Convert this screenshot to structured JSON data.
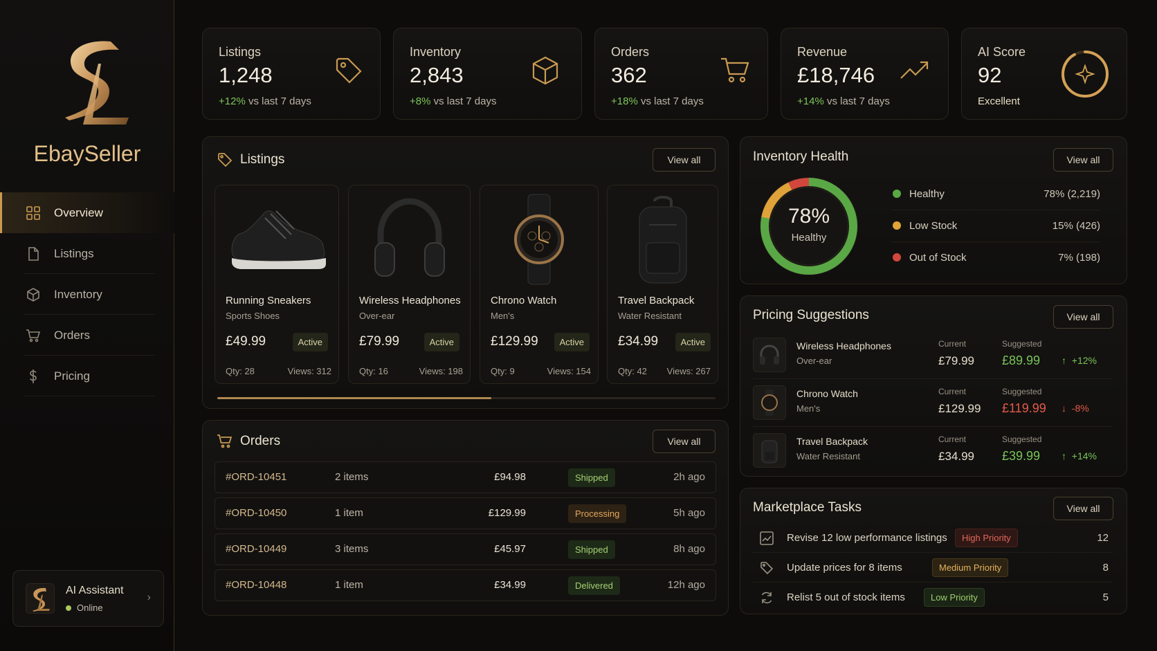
{
  "app": {
    "name": "EbaySeller"
  },
  "sidebar": {
    "items": [
      {
        "label": "Overview",
        "icon": "grid-icon",
        "active": true
      },
      {
        "label": "Listings",
        "icon": "document-icon"
      },
      {
        "label": "Inventory",
        "icon": "box-icon"
      },
      {
        "label": "Orders",
        "icon": "cart-icon"
      },
      {
        "label": "Pricing",
        "icon": "dollar-icon"
      }
    ],
    "assistant": {
      "title": "AI Assistant",
      "status": "Online"
    }
  },
  "stats": [
    {
      "label": "Listings",
      "value": "1,248",
      "change": "+12%",
      "suffix": "vs last 7 days",
      "icon": "tag-icon"
    },
    {
      "label": "Inventory",
      "value": "2,843",
      "change": "+8%",
      "suffix": "vs last 7 days",
      "icon": "box-icon"
    },
    {
      "label": "Orders",
      "value": "362",
      "change": "+18%",
      "suffix": "vs last 7 days",
      "icon": "cart-icon"
    },
    {
      "label": "Revenue",
      "value": "£18,746",
      "change": "+14%",
      "suffix": "vs last 7 days",
      "icon": "trend-up-icon"
    },
    {
      "label": "AI Score",
      "value": "92",
      "note": "Excellent",
      "icon": "sparkle-icon",
      "score": 92
    }
  ],
  "listings": {
    "title": "Listings",
    "view_all": "View all",
    "scroll_progress": 0.55,
    "items": [
      {
        "name": "Running Sneakers",
        "category": "Sports Shoes",
        "price": "£49.99",
        "status": "Active",
        "qty": "Qty: 28",
        "views": "Views: 312"
      },
      {
        "name": "Wireless Headphones",
        "category": "Over-ear",
        "price": "£79.99",
        "status": "Active",
        "qty": "Qty: 16",
        "views": "Views: 198"
      },
      {
        "name": "Chrono Watch",
        "category": "Men's",
        "price": "£129.99",
        "status": "Active",
        "qty": "Qty: 9",
        "views": "Views: 154"
      },
      {
        "name": "Travel Backpack",
        "category": "Water Resistant",
        "price": "£34.99",
        "status": "Active",
        "qty": "Qty: 42",
        "views": "Views: 267"
      }
    ]
  },
  "orders": {
    "title": "Orders",
    "view_all": "View all",
    "rows": [
      {
        "id": "#ORD-10451",
        "items": "2 items",
        "amount": "£94.98",
        "status": "Shipped",
        "time": "2h ago"
      },
      {
        "id": "#ORD-10450",
        "items": "1 item",
        "amount": "£129.99",
        "status": "Processing",
        "time": "5h ago"
      },
      {
        "id": "#ORD-10449",
        "items": "3 items",
        "amount": "£45.97",
        "status": "Shipped",
        "time": "8h ago"
      },
      {
        "id": "#ORD-10448",
        "items": "1 item",
        "amount": "£34.99",
        "status": "Delivered",
        "time": "12h ago"
      }
    ]
  },
  "inventory_health": {
    "title": "Inventory Health",
    "view_all": "View all",
    "center_value": "78%",
    "center_label": "Healthy",
    "segments": [
      {
        "name": "Healthy",
        "value": "78% (2,219)",
        "pct": 78,
        "color": "#5aa845"
      },
      {
        "name": "Low Stock",
        "value": "15%  (426)",
        "pct": 15,
        "color": "#e0a33a"
      },
      {
        "name": "Out of Stock",
        "value": "7%  (198)",
        "pct": 7,
        "color": "#d2473d"
      }
    ]
  },
  "pricing": {
    "title": "Pricing Suggestions",
    "view_all": "View all",
    "current_label": "Current",
    "suggested_label": "Suggested",
    "rows": [
      {
        "name": "Wireless Headphones",
        "category": "Over-ear",
        "current": "£79.99",
        "suggested": "£89.99",
        "change": "+12%",
        "direction": "up"
      },
      {
        "name": "Chrono Watch",
        "category": "Men's",
        "current": "£129.99",
        "suggested": "£119.99",
        "change": "-8%",
        "direction": "down"
      },
      {
        "name": "Travel Backpack",
        "category": "Water Resistant",
        "current": "£34.99",
        "suggested": "£39.99",
        "change": "+14%",
        "direction": "up"
      }
    ]
  },
  "tasks": {
    "title": "Marketplace Tasks",
    "view_all": "View all",
    "rows": [
      {
        "text": "Revise 12 low performance listings",
        "priority": "High Priority",
        "count": "12",
        "icon": "trend-icon"
      },
      {
        "text": "Update prices for 8 items",
        "priority": "Medium Priority",
        "count": "8",
        "icon": "tag-icon"
      },
      {
        "text": "Relist 5 out of stock items",
        "priority": "Low Priority",
        "count": "5",
        "icon": "refresh-icon"
      }
    ]
  },
  "colors": {
    "accent": "#c99a52",
    "positive": "#79c45a",
    "negative": "#e55a4a"
  }
}
